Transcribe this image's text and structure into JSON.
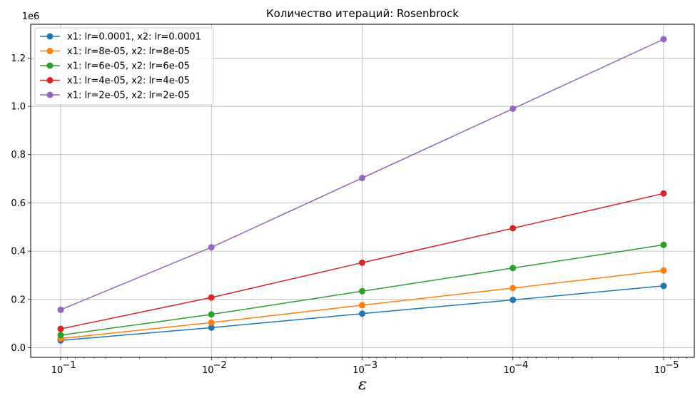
{
  "chart_data": {
    "type": "line",
    "title": "Количество итераций: Rosenbrock",
    "xlabel": "ε",
    "ylabel": "",
    "x_scale": "log",
    "x_inverted": true,
    "x": [
      0.1,
      0.01,
      0.001,
      0.0001,
      1e-05
    ],
    "x_tick_labels": [
      "10",
      "10",
      "10",
      "10",
      "10"
    ],
    "x_tick_exponents": [
      "−1",
      "−2",
      "−3",
      "−4",
      "−5"
    ],
    "y_tick_labels": [
      "0.0",
      "0.2",
      "0.4",
      "0.6",
      "0.8",
      "1.0",
      "1.2"
    ],
    "y_ticks": [
      0,
      200000,
      400000,
      600000,
      800000,
      1000000,
      1200000
    ],
    "y_offset_label": "1e6",
    "ylim": [
      -40000,
      1340000
    ],
    "grid": true,
    "legend_position": "upper-left",
    "series": [
      {
        "name": "x1: lr=0.0001, x2: lr=0.0001",
        "color": "#1f77b4",
        "values": [
          30000,
          83000,
          141000,
          198000,
          256000
        ]
      },
      {
        "name": "x1: lr=8e-05, x2: lr=8e-05",
        "color": "#ff7f0e",
        "values": [
          38000,
          104000,
          176000,
          247000,
          320000
        ]
      },
      {
        "name": "x1: lr=6e-05, x2: lr=6e-05",
        "color": "#2ca02c",
        "values": [
          52000,
          138000,
          234000,
          330000,
          426000
        ]
      },
      {
        "name": "x1: lr=4e-05, x2: lr=4e-05",
        "color": "#d62728",
        "values": [
          78000,
          208000,
          352000,
          495000,
          639000
        ]
      },
      {
        "name": "x1: lr=2e-05, x2: lr=2e-05",
        "color": "#9467bd",
        "values": [
          157000,
          416000,
          703000,
          990000,
          1278000
        ]
      }
    ]
  }
}
